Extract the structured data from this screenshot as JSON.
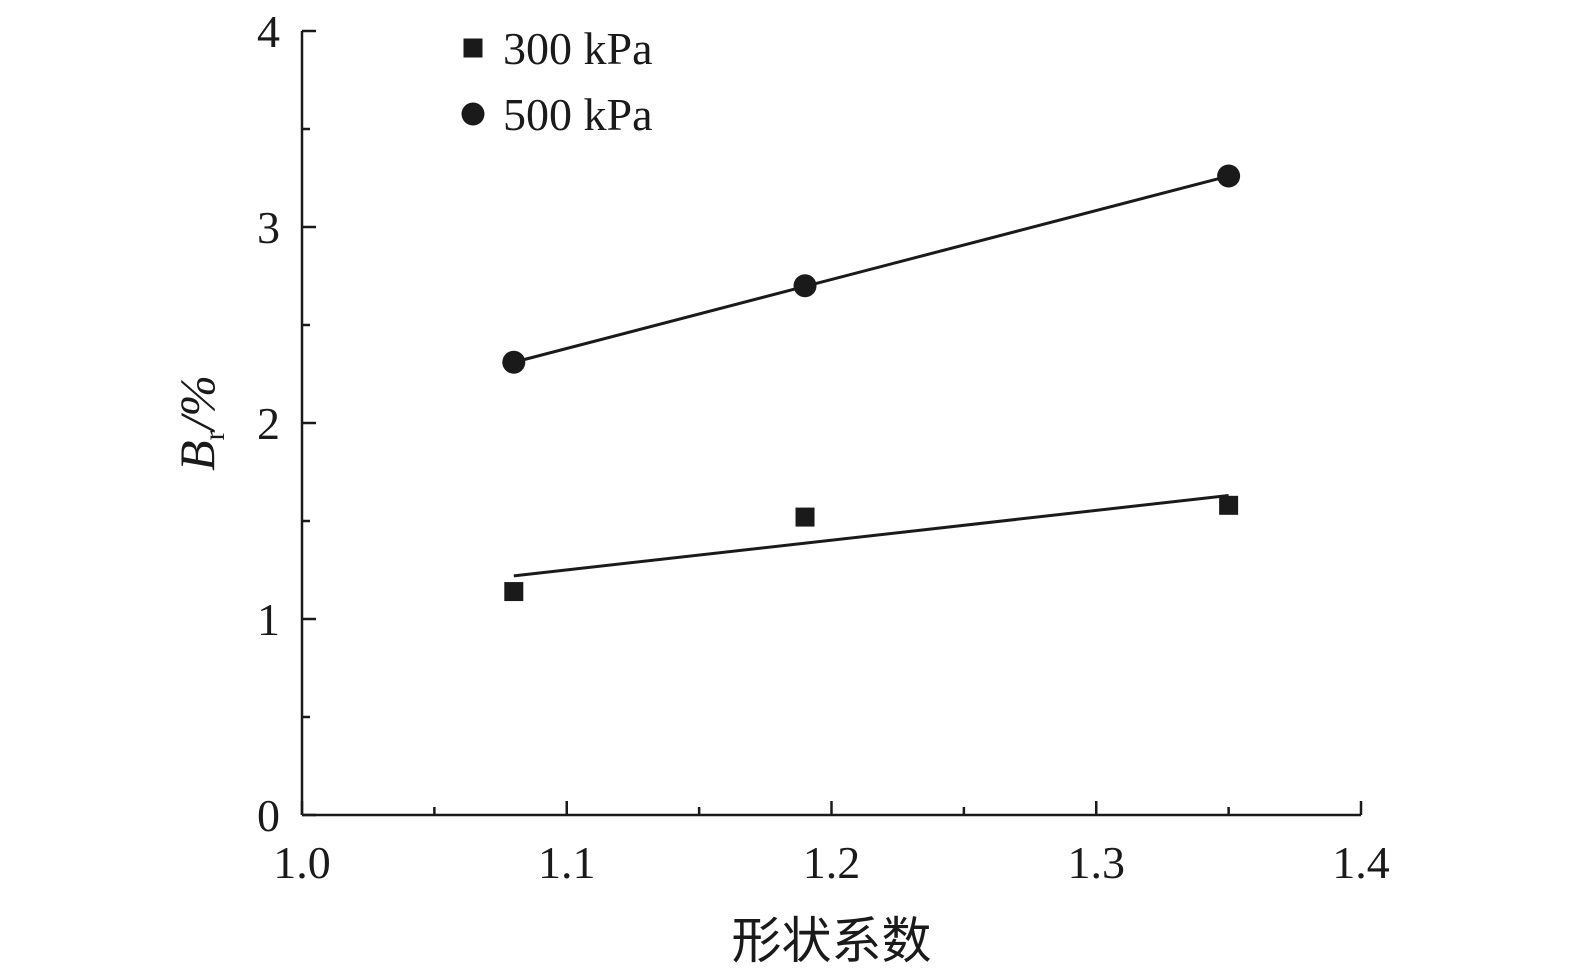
{
  "chart_data": {
    "type": "scatter",
    "xlabel": "形状系数",
    "ylabel": {
      "symbol": "B",
      "subscript": "r",
      "unit": "/%"
    },
    "xlim": [
      1.0,
      1.4
    ],
    "ylim": [
      0,
      4
    ],
    "x_ticks": [
      "1.0",
      "1.1",
      "1.2",
      "1.3",
      "1.4"
    ],
    "y_ticks": [
      "0",
      "1",
      "2",
      "3",
      "4"
    ],
    "x_tick_values": [
      1.0,
      1.1,
      1.2,
      1.3,
      1.4
    ],
    "y_tick_values": [
      0,
      1,
      2,
      3,
      4
    ],
    "x_minor_step": 0.05,
    "y_minor_step": 0.5,
    "grid": false,
    "legend_position": "top-left",
    "colors": {
      "marks": "#1a1a1a",
      "axes": "#1a1a1a"
    },
    "series": [
      {
        "name": "300 kPa",
        "marker": "square",
        "x": [
          1.08,
          1.19,
          1.35
        ],
        "y": [
          1.14,
          1.52,
          1.58
        ],
        "fit_line": {
          "x": [
            1.08,
            1.35
          ],
          "y": [
            1.22,
            1.63
          ]
        }
      },
      {
        "name": "500 kPa",
        "marker": "circle",
        "x": [
          1.08,
          1.19,
          1.35
        ],
        "y": [
          2.31,
          2.7,
          3.26
        ],
        "fit_line": {
          "x": [
            1.08,
            1.35
          ],
          "y": [
            2.31,
            3.26
          ]
        }
      }
    ]
  }
}
